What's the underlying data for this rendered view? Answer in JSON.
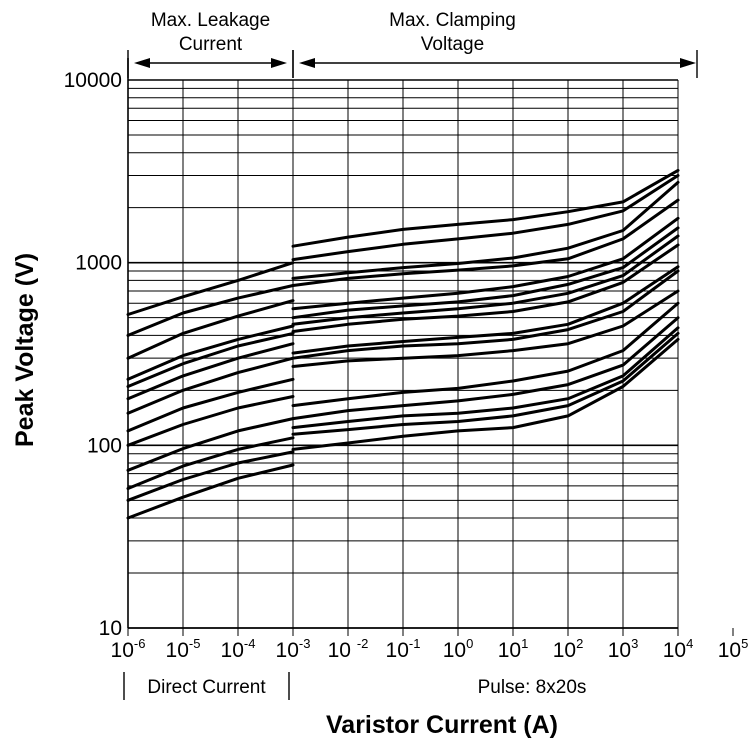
{
  "chart_data": {
    "type": "line",
    "title": "",
    "xlabel": "Varistor Current (A)",
    "ylabel": "Peak Voltage (V)",
    "x_scale": "log",
    "y_scale": "log",
    "xlim": [
      1e-06,
      100000
    ],
    "ylim": [
      10,
      10000
    ],
    "grid": true,
    "x_ticks": [
      {
        "base": "10",
        "exp": "-6"
      },
      {
        "base": "10",
        "exp": "-5"
      },
      {
        "base": "10",
        "exp": "-4"
      },
      {
        "base": "10",
        "exp": "-3"
      },
      {
        "base": "10 ",
        "exp": "-2"
      },
      {
        "base": "10",
        "exp": "-1"
      },
      {
        "base": "10",
        "exp": "0"
      },
      {
        "base": "10",
        "exp": "1"
      },
      {
        "base": "10",
        "exp": "2"
      },
      {
        "base": "10",
        "exp": "3"
      },
      {
        "base": "10",
        "exp": "4"
      },
      {
        "base": "10",
        "exp": "5"
      }
    ],
    "y_ticks": [
      "10",
      "100",
      "1000",
      "10000"
    ],
    "top_annotations": [
      {
        "line1": "Max. Leakage",
        "line2": "Current",
        "from": 1e-06,
        "to": 0.001
      },
      {
        "line1": "Max. Clamping",
        "line2": "Voltage",
        "from": 0.001,
        "to": 10000
      }
    ],
    "bottom_annotations": [
      {
        "label": "Direct Current",
        "from": 1e-06,
        "to": 0.001
      },
      {
        "label": "Pulse: 8x20s",
        "from": 0.001,
        "to": 100000
      }
    ],
    "series_dc": [
      {
        "x": [
          1e-06,
          1e-05,
          0.0001,
          0.001
        ],
        "y": [
          520,
          650,
          800,
          1000
        ]
      },
      {
        "x": [
          1e-06,
          1e-05,
          0.0001,
          0.001
        ],
        "y": [
          400,
          530,
          640,
          750
        ]
      },
      {
        "x": [
          1e-06,
          1e-05,
          0.0001,
          0.001
        ],
        "y": [
          300,
          410,
          510,
          620
        ]
      },
      {
        "x": [
          1e-06,
          1e-05,
          0.0001,
          0.001
        ],
        "y": [
          230,
          310,
          380,
          450
        ]
      },
      {
        "x": [
          1e-06,
          1e-05,
          0.0001,
          0.001
        ],
        "y": [
          210,
          280,
          350,
          410
        ]
      },
      {
        "x": [
          1e-06,
          1e-05,
          0.0001,
          0.001
        ],
        "y": [
          180,
          240,
          300,
          360
        ]
      },
      {
        "x": [
          1e-06,
          1e-05,
          0.0001,
          0.001
        ],
        "y": [
          150,
          200,
          250,
          300
        ]
      },
      {
        "x": [
          1e-06,
          1e-05,
          0.0001,
          0.001
        ],
        "y": [
          120,
          160,
          195,
          230
        ]
      },
      {
        "x": [
          1e-06,
          1e-05,
          0.0001,
          0.001
        ],
        "y": [
          100,
          130,
          160,
          185
        ]
      },
      {
        "x": [
          1e-06,
          1e-05,
          0.0001,
          0.001
        ],
        "y": [
          73,
          96,
          120,
          140
        ]
      },
      {
        "x": [
          1e-06,
          1e-05,
          0.0001,
          0.001
        ],
        "y": [
          58,
          77,
          95,
          110
        ]
      },
      {
        "x": [
          1e-06,
          1e-05,
          0.0001,
          0.001
        ],
        "y": [
          50,
          65,
          80,
          92
        ]
      },
      {
        "x": [
          1e-06,
          1e-05,
          0.0001,
          0.001
        ],
        "y": [
          40,
          52,
          66,
          78
        ]
      }
    ],
    "series_pulse": [
      {
        "x": [
          0.001,
          0.01,
          0.1,
          1,
          10,
          100,
          1000,
          10000
        ],
        "y": [
          1230,
          1380,
          1520,
          1620,
          1720,
          1900,
          2150,
          3200
        ]
      },
      {
        "x": [
          0.001,
          0.01,
          0.1,
          1,
          10,
          100,
          1000,
          10000
        ],
        "y": [
          1040,
          1150,
          1260,
          1350,
          1450,
          1620,
          1920,
          3000
        ]
      },
      {
        "x": [
          0.001,
          0.01,
          0.1,
          1,
          10,
          100,
          1000,
          10000
        ],
        "y": [
          820,
          880,
          940,
          990,
          1060,
          1200,
          1500,
          2750
        ]
      },
      {
        "x": [
          0.001,
          0.01,
          0.1,
          1,
          10,
          100,
          1000,
          10000
        ],
        "y": [
          750,
          820,
          870,
          910,
          960,
          1050,
          1350,
          2200
        ]
      },
      {
        "x": [
          0.001,
          0.01,
          0.1,
          1,
          10,
          100,
          1000,
          10000
        ],
        "y": [
          560,
          600,
          640,
          680,
          740,
          840,
          1050,
          1750
        ]
      },
      {
        "x": [
          0.001,
          0.01,
          0.1,
          1,
          10,
          100,
          1000,
          10000
        ],
        "y": [
          500,
          550,
          580,
          610,
          660,
          760,
          940,
          1550
        ]
      },
      {
        "x": [
          0.001,
          0.01,
          0.1,
          1,
          10,
          100,
          1000,
          10000
        ],
        "y": [
          460,
          500,
          530,
          560,
          600,
          680,
          850,
          1400
        ]
      },
      {
        "x": [
          0.001,
          0.01,
          0.1,
          1,
          10,
          100,
          1000,
          10000
        ],
        "y": [
          420,
          460,
          490,
          510,
          540,
          610,
          780,
          1250
        ]
      },
      {
        "x": [
          0.001,
          0.01,
          0.1,
          1,
          10,
          100,
          1000,
          10000
        ],
        "y": [
          320,
          350,
          370,
          390,
          410,
          460,
          600,
          950
        ]
      },
      {
        "x": [
          0.001,
          0.01,
          0.1,
          1,
          10,
          100,
          1000,
          10000
        ],
        "y": [
          300,
          330,
          350,
          360,
          380,
          430,
          540,
          900
        ]
      },
      {
        "x": [
          0.001,
          0.01,
          0.1,
          1,
          10,
          100,
          1000,
          10000
        ],
        "y": [
          270,
          290,
          300,
          310,
          330,
          360,
          450,
          700
        ]
      },
      {
        "x": [
          0.001,
          0.01,
          0.1,
          1,
          10,
          100,
          1000,
          10000
        ],
        "y": [
          165,
          180,
          195,
          205,
          225,
          255,
          330,
          600
        ]
      },
      {
        "x": [
          0.001,
          0.01,
          0.1,
          1,
          10,
          100,
          1000,
          10000
        ],
        "y": [
          140,
          155,
          165,
          175,
          190,
          215,
          275,
          500
        ]
      },
      {
        "x": [
          0.001,
          0.01,
          0.1,
          1,
          10,
          100,
          1000,
          10000
        ],
        "y": [
          125,
          135,
          145,
          150,
          160,
          180,
          240,
          440
        ]
      },
      {
        "x": [
          0.001,
          0.01,
          0.1,
          1,
          10,
          100,
          1000,
          10000
        ],
        "y": [
          115,
          122,
          130,
          135,
          145,
          165,
          225,
          410
        ]
      },
      {
        "x": [
          0.001,
          0.01,
          0.1,
          1,
          10,
          100,
          1000,
          10000
        ],
        "y": [
          95,
          103,
          112,
          120,
          125,
          145,
          210,
          380
        ]
      }
    ],
    "line_color": "#000000",
    "grid_color": "#000000",
    "background": "#ffffff"
  }
}
